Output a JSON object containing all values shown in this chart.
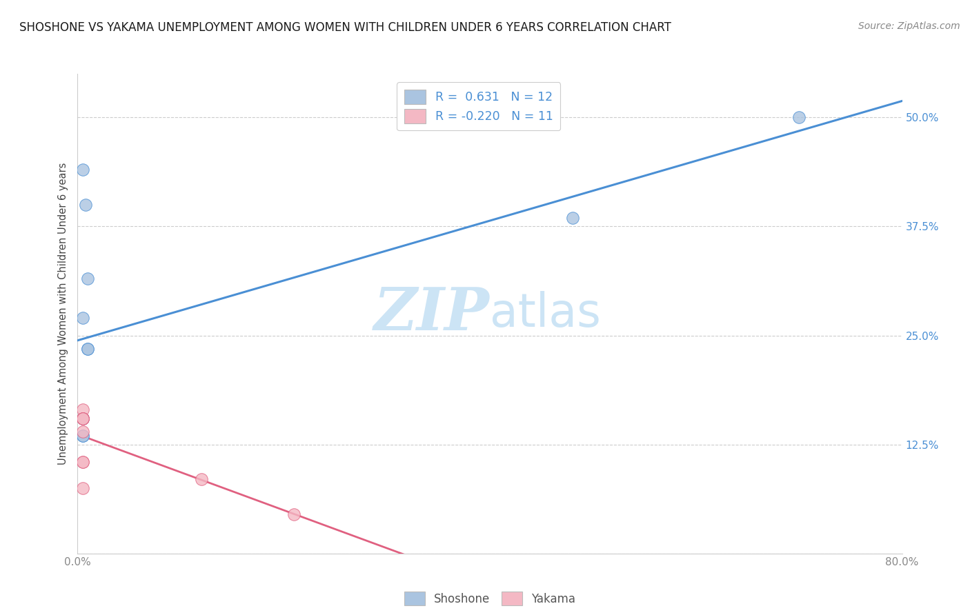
{
  "title": "SHOSHONE VS YAKAMA UNEMPLOYMENT AMONG WOMEN WITH CHILDREN UNDER 6 YEARS CORRELATION CHART",
  "source": "Source: ZipAtlas.com",
  "ylabel": "Unemployment Among Women with Children Under 6 years",
  "xlim": [
    0.0,
    0.8
  ],
  "ylim": [
    0.0,
    0.55
  ],
  "xticks": [
    0.0,
    0.1,
    0.2,
    0.3,
    0.4,
    0.5,
    0.6,
    0.7,
    0.8
  ],
  "xticklabels": [
    "0.0%",
    "",
    "",
    "",
    "",
    "",
    "",
    "",
    "80.0%"
  ],
  "yticks": [
    0.0,
    0.125,
    0.25,
    0.375,
    0.5
  ],
  "yticklabels": [
    "",
    "12.5%",
    "25.0%",
    "37.5%",
    "50.0%"
  ],
  "shoshone_x": [
    0.005,
    0.008,
    0.01,
    0.01,
    0.005,
    0.005,
    0.005,
    0.005,
    0.005,
    0.01,
    0.7,
    0.48
  ],
  "shoshone_y": [
    0.44,
    0.4,
    0.315,
    0.235,
    0.27,
    0.155,
    0.155,
    0.135,
    0.135,
    0.235,
    0.5,
    0.385
  ],
  "yakama_x": [
    0.005,
    0.005,
    0.005,
    0.005,
    0.005,
    0.005,
    0.12,
    0.21,
    0.005,
    0.005,
    0.005
  ],
  "yakama_y": [
    0.165,
    0.155,
    0.155,
    0.105,
    0.105,
    0.075,
    0.085,
    0.045,
    0.155,
    0.155,
    0.14
  ],
  "shoshone_color": "#aac4e0",
  "yakama_color": "#f4b8c4",
  "shoshone_line_color": "#4a8fd4",
  "yakama_line_color": "#e06080",
  "shoshone_r": 0.631,
  "shoshone_n": 12,
  "yakama_r": -0.22,
  "yakama_n": 11,
  "watermark_zip": "ZIP",
  "watermark_atlas": "atlas",
  "watermark_color": "#cce4f5",
  "legend_shoshone": "Shoshone",
  "legend_yakama": "Yakama",
  "background_color": "#ffffff",
  "grid_color": "#cccccc"
}
